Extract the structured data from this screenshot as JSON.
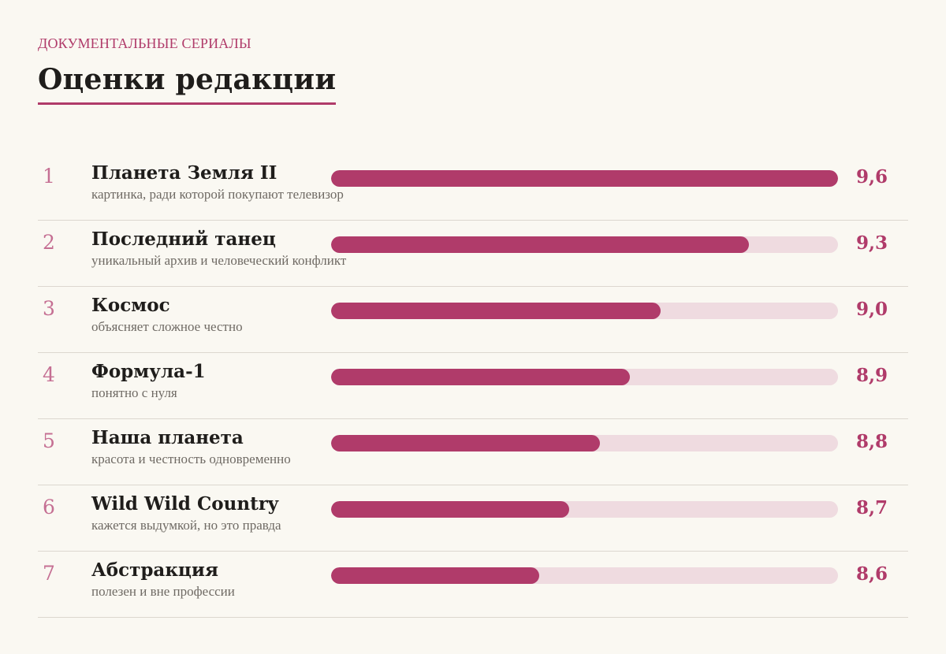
{
  "header": {
    "eyebrow": "ДОКУМЕНТАЛЬНЫЕ СЕРИАЛЫ",
    "title": "Оценки редакции"
  },
  "colors": {
    "accent": "#b03b6a",
    "track": "#efdbe0",
    "background": "#faf8f2"
  },
  "ratings": [
    {
      "rank": "1",
      "name": "Планета Земля II",
      "note": "картинка, ради которой покупают телевизор",
      "score": "9,6",
      "fill": 1.0
    },
    {
      "rank": "2",
      "name": "Последний танец",
      "note": "уникальный архив и человеческий конфликт",
      "score": "9,3",
      "fill": 0.825
    },
    {
      "rank": "3",
      "name": "Космос",
      "note": "объясняет сложное честно",
      "score": "9,0",
      "fill": 0.65
    },
    {
      "rank": "4",
      "name": "Формула-1",
      "note": "понятно с нуля",
      "score": "8,9",
      "fill": 0.59
    },
    {
      "rank": "5",
      "name": "Наша планета",
      "note": "красота и честность одновременно",
      "score": "8,8",
      "fill": 0.53
    },
    {
      "rank": "6",
      "name": "Wild Wild Country",
      "note": "кажется выдумкой, но это правда",
      "score": "8,7",
      "fill": 0.47
    },
    {
      "rank": "7",
      "name": "Абстракция",
      "note": "полезен и вне профессии",
      "score": "8,6",
      "fill": 0.41
    }
  ]
}
